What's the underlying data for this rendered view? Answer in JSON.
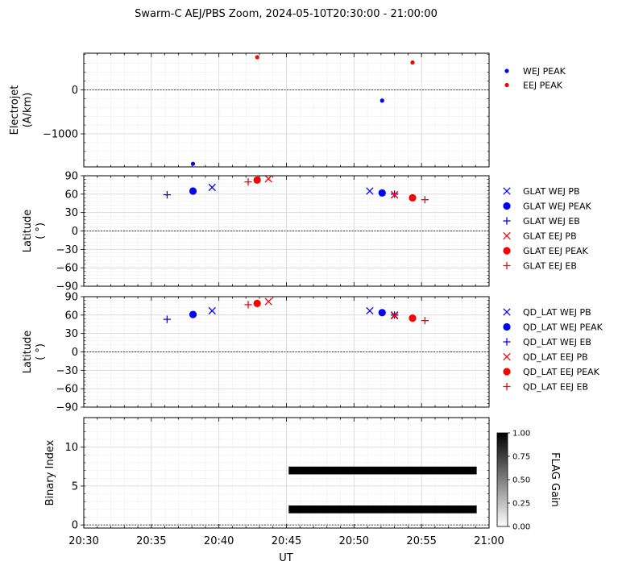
{
  "title": "Swarm-C AEJ/PBS Zoom, 2024-05-10T20:30:00 - 21:00:00",
  "xaxis": {
    "label": "UT",
    "range": [
      "20:30",
      "21:00"
    ],
    "ticks": [
      "20:30",
      "20:35",
      "20:40",
      "20:45",
      "20:50",
      "20:55",
      "21:00"
    ]
  },
  "colors": {
    "wej": "#0000ff",
    "eej": "#ff0000"
  },
  "chart_data": [
    {
      "type": "scatter",
      "panel": "electrojet",
      "ylabel": "Electrojet\n(A/km)",
      "ylim": [
        -1750,
        830
      ],
      "yticks": [
        0,
        -1000
      ],
      "ytick_labels": [
        "0",
        "−1000"
      ],
      "zero_line": true,
      "legend_position": "outside-right",
      "series": [
        {
          "name": "WEJ PEAK",
          "color": "#0000ff",
          "marker": "dot",
          "x": [
            "20:38:05",
            "20:52:05"
          ],
          "y": [
            -1680,
            -245
          ]
        },
        {
          "name": "EEJ PEAK",
          "color": "#ff0000",
          "marker": "dot",
          "x": [
            "20:42:50",
            "20:54:20"
          ],
          "y": [
            740,
            620
          ]
        }
      ]
    },
    {
      "type": "scatter",
      "panel": "geographic-latitude",
      "ylabel": "Latitude\n( °)",
      "ylim": [
        -90,
        90
      ],
      "yticks": [
        90,
        60,
        30,
        0,
        -30,
        -60,
        -90
      ],
      "ytick_labels": [
        "90",
        "60",
        "30",
        "0",
        "−30",
        "−60",
        "−90"
      ],
      "zero_line": true,
      "legend_position": "outside-right",
      "series": [
        {
          "name": "GLAT WEJ PB",
          "color": "#0000ff",
          "marker": "x",
          "x": [
            "20:39:30",
            "20:51:10",
            "20:53:00"
          ],
          "y": [
            71,
            65,
            59
          ]
        },
        {
          "name": "GLAT WEJ PEAK",
          "color": "#0000ff",
          "marker": "circle",
          "x": [
            "20:38:05",
            "20:52:05"
          ],
          "y": [
            65,
            62
          ]
        },
        {
          "name": "GLAT WEJ EB",
          "color": "#0000ff",
          "marker": "plus",
          "x": [
            "20:36:10",
            "20:53:00"
          ],
          "y": [
            59,
            60
          ]
        },
        {
          "name": "GLAT EEJ PB",
          "color": "#ff0000",
          "marker": "x",
          "x": [
            "20:43:40",
            "20:53:00"
          ],
          "y": [
            85,
            59
          ]
        },
        {
          "name": "GLAT EEJ PEAK",
          "color": "#ff0000",
          "marker": "circle",
          "x": [
            "20:42:50",
            "20:54:20"
          ],
          "y": [
            83,
            54
          ]
        },
        {
          "name": "GLAT EEJ EB",
          "color": "#ff0000",
          "marker": "plus",
          "x": [
            "20:42:10",
            "20:55:15"
          ],
          "y": [
            80,
            51
          ]
        }
      ]
    },
    {
      "type": "scatter",
      "panel": "qd-latitude",
      "ylabel": "Latitude\n( °)",
      "ylim": [
        -90,
        90
      ],
      "yticks": [
        90,
        60,
        30,
        0,
        -30,
        -60,
        -90
      ],
      "ytick_labels": [
        "90",
        "60",
        "30",
        "0",
        "−30",
        "−60",
        "−90"
      ],
      "zero_line": true,
      "legend_position": "outside-right",
      "series": [
        {
          "name": "QD_LAT WEJ PB",
          "color": "#0000ff",
          "marker": "x",
          "x": [
            "20:39:30",
            "20:51:10",
            "20:53:00"
          ],
          "y": [
            67,
            67,
            60
          ]
        },
        {
          "name": "QD_LAT WEJ PEAK",
          "color": "#0000ff",
          "marker": "circle",
          "x": [
            "20:38:05",
            "20:52:05"
          ],
          "y": [
            61,
            64
          ]
        },
        {
          "name": "QD_LAT WEJ EB",
          "color": "#0000ff",
          "marker": "plus",
          "x": [
            "20:36:10",
            "20:53:00"
          ],
          "y": [
            53,
            60
          ]
        },
        {
          "name": "QD_LAT EEJ PB",
          "color": "#ff0000",
          "marker": "x",
          "x": [
            "20:43:40",
            "20:53:00"
          ],
          "y": [
            82,
            59
          ]
        },
        {
          "name": "QD_LAT EEJ PEAK",
          "color": "#ff0000",
          "marker": "circle",
          "x": [
            "20:42:50",
            "20:54:20"
          ],
          "y": [
            79,
            55
          ]
        },
        {
          "name": "QD_LAT EEJ EB",
          "color": "#ff0000",
          "marker": "plus",
          "x": [
            "20:42:10",
            "20:55:15"
          ],
          "y": [
            77,
            51
          ]
        }
      ]
    },
    {
      "type": "heatmap",
      "panel": "binary-index",
      "ylabel": "Binary Index",
      "ylim": [
        -0.4,
        13.8
      ],
      "yticks": [
        0,
        5,
        10
      ],
      "ytick_labels": [
        "0",
        "5",
        "10"
      ],
      "zero_line": true,
      "colorbar": {
        "label": "FLAG Gain",
        "range": [
          0,
          1
        ],
        "ticks": [
          0,
          0.25,
          0.5,
          0.75,
          1
        ],
        "tick_labels": [
          "0.00",
          "0.25",
          "0.50",
          "0.75",
          "1.00"
        ]
      },
      "bands": [
        {
          "index": 2,
          "x_start": "20:45:10",
          "x_end": "20:59:05",
          "value": 1.0
        },
        {
          "index": 7,
          "x_start": "20:45:10",
          "x_end": "20:59:05",
          "value": 1.0
        }
      ]
    }
  ]
}
